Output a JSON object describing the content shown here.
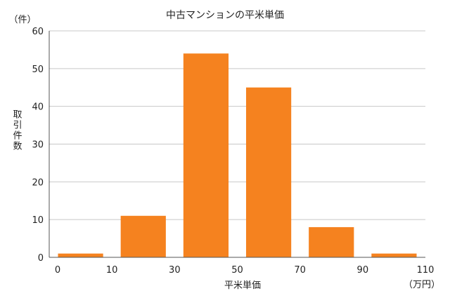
{
  "chart_data": {
    "type": "bar",
    "title": "中古マンションの平米単価",
    "xlabel": "平米単価",
    "xunit": "（万円）",
    "ylabel": "取引件数",
    "yunit": "（件）",
    "ylim": [
      0,
      60
    ],
    "yticks": [
      "0",
      "10",
      "20",
      "30",
      "40",
      "50",
      "60"
    ],
    "xticks": [
      "0",
      "10",
      "30",
      "50",
      "70",
      "90",
      "110"
    ],
    "categories": [
      "0-10",
      "10-30",
      "30-50",
      "50-70",
      "70-90",
      "90-110"
    ],
    "values": [
      1,
      11,
      54,
      45,
      8,
      1
    ],
    "grid": true,
    "bar_color": "#F5821F",
    "grid_color": "#C8C8C8"
  }
}
